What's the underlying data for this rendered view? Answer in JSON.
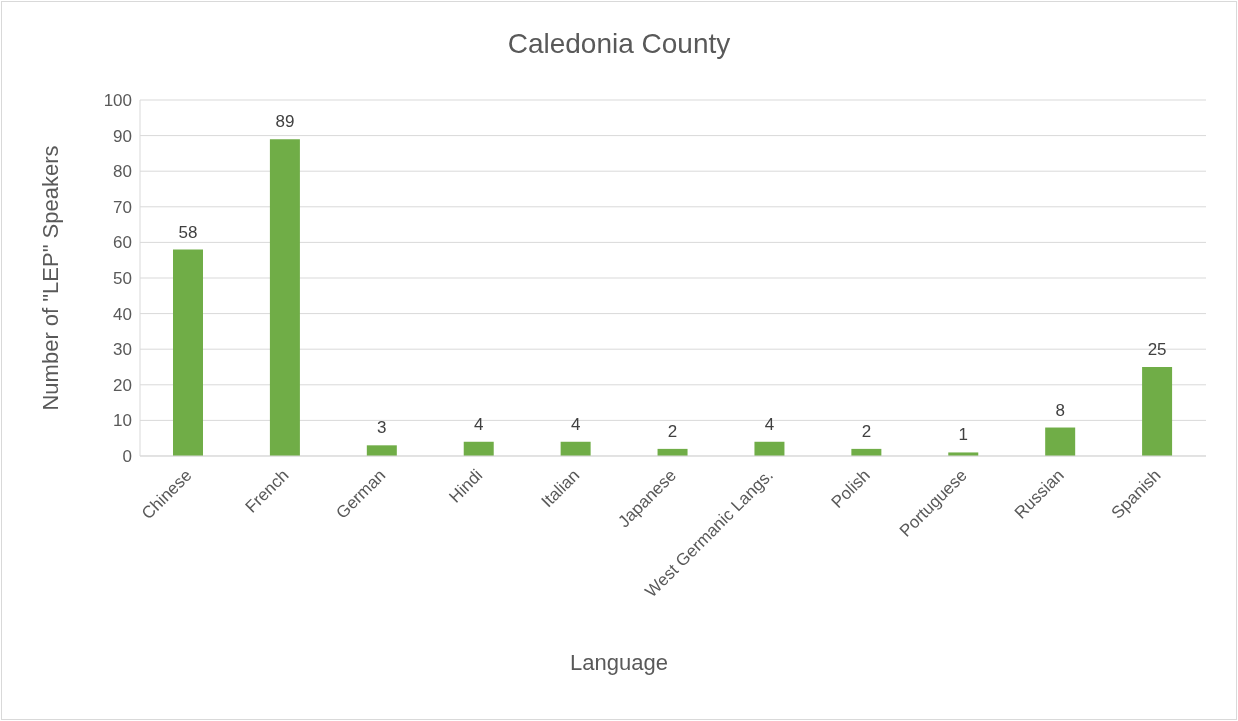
{
  "chart_data": {
    "type": "bar",
    "title": "Caledonia County",
    "xlabel": "Language",
    "ylabel": "Number of \"LEP\" Speakers",
    "categories": [
      "Chinese",
      "French",
      "German",
      "Hindi",
      "Italian",
      "Japanese",
      "West Germanic Langs.",
      "Polish",
      "Portuguese",
      "Russian",
      "Spanish"
    ],
    "values": [
      58,
      89,
      3,
      4,
      4,
      2,
      4,
      2,
      1,
      8,
      25
    ],
    "color": "#70ad47",
    "ylim": [
      0,
      100
    ],
    "yticks": [
      0,
      10,
      20,
      30,
      40,
      50,
      60,
      70,
      80,
      90,
      100
    ],
    "grid": "y",
    "data_labels": true,
    "legend": false
  }
}
